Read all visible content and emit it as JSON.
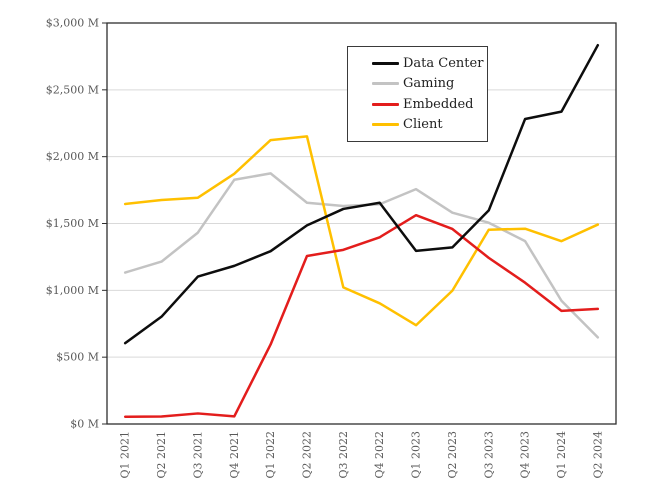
{
  "chart_data": {
    "type": "line",
    "title": "",
    "xlabel": "",
    "ylabel": "",
    "categories": [
      "Q1 2021",
      "Q2 2021",
      "Q3 2021",
      "Q4 2021",
      "Q1 2022",
      "Q2 2022",
      "Q3 2022",
      "Q4 2022",
      "Q1 2023",
      "Q2 2023",
      "Q3 2023",
      "Q4 2023",
      "Q1 2024",
      "Q2 2024"
    ],
    "series": [
      {
        "name": "Data Center",
        "color": "#0d0d0d",
        "values": [
          605,
          803,
          1103,
          1183,
          1293,
          1486,
          1609,
          1655,
          1295,
          1321,
          1598,
          2282,
          2337,
          2834
        ]
      },
      {
        "name": "Gaming",
        "color": "#c3c3c3",
        "values": [
          1133,
          1215,
          1432,
          1827,
          1875,
          1655,
          1631,
          1644,
          1757,
          1581,
          1506,
          1368,
          922,
          648
        ]
      },
      {
        "name": "Embedded",
        "color": "#e31d1c",
        "values": [
          54,
          56,
          79,
          57,
          595,
          1257,
          1303,
          1397,
          1562,
          1459,
          1243,
          1057,
          846,
          861
        ]
      },
      {
        "name": "Client",
        "color": "#ffc000",
        "values": [
          1646,
          1676,
          1693,
          1872,
          2124,
          2152,
          1022,
          903,
          739,
          998,
          1453,
          1461,
          1368,
          1492
        ]
      }
    ],
    "draw_order": [
      1,
      3,
      2,
      0
    ],
    "ylim": [
      0,
      3000
    ],
    "y_ticks": [
      0,
      500,
      1000,
      1500,
      2000,
      2500,
      3000
    ],
    "y_tick_labels": [
      "$0 M",
      "$500 M",
      "$1,000 M",
      "$1,500 M",
      "$2,000 M",
      "$2,500 M",
      "$3,000 M"
    ],
    "grid": true,
    "legend_position": "top-right-inside",
    "style": {
      "background": "#ffffff",
      "grid_color": "#d9d9d9",
      "axis_color": "#2e2e2e",
      "tick_color": "#595959",
      "axis_label_color": "#595959",
      "legend_text_color": "#1f1f1f",
      "line_width": 2.5
    }
  }
}
